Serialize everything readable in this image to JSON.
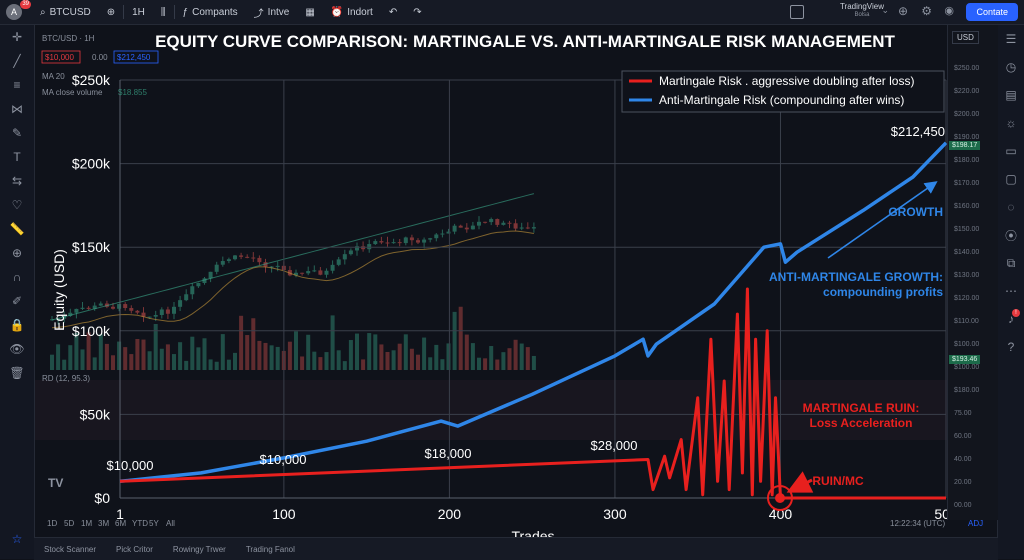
{
  "app": {
    "symbol": "BTCUSD",
    "notification_count": "39",
    "interval": "1H",
    "compare_label": "Compants",
    "indicators_label": "Intve",
    "alert_label": "Indort",
    "brand": "TradingView",
    "brand_sub": "Bolsa",
    "contact_label": "Contate",
    "currency": "USD"
  },
  "background_chart": {
    "symbol_label": "BTC/USD · 1H",
    "price_badge_1": "$10,000",
    "price_badge_2": "0.00",
    "price_badge_3": "$212,450",
    "ma_label": "MA 20",
    "ma_volume_label": "MA close volume",
    "ma_volume_value": "$18.855",
    "rsi_label": "RD (12, 95.3)",
    "scale_labels": [
      "$250.00",
      "$220.00",
      "$200.00",
      "$190.00",
      "$180.00",
      "$170.00",
      "$160.00",
      "$150.00",
      "$140.00",
      "$130.00",
      "$120.00",
      "$110.00",
      "$100.00",
      "$100.00",
      "$180.00",
      "75.00",
      "60.00",
      "40.00",
      "20.00",
      "00.00"
    ],
    "price_tag_1": "$198.17",
    "price_tag_2": "$193.46",
    "time_label": "12:22:34 (UTC)",
    "adj_label": "ADJ",
    "time_buttons": [
      "1D",
      "5D",
      "1M",
      "3M",
      "6M",
      "YTD",
      "5Y",
      "All"
    ],
    "bottom_tabs": [
      "Stock Scanner",
      "Pick Critor",
      "Rowingy Trwer",
      "Trading Fanol"
    ]
  },
  "chart_data": {
    "type": "line",
    "title": "EQUITY CURVE COMPARISON: MARTINGALE VS. ANTI-MARTINGALE RISK MANAGEMENT",
    "xlabel": "Trades",
    "ylabel": "Equity (USD)",
    "xlim": [
      1,
      500
    ],
    "ylim": [
      0,
      250000
    ],
    "x_ticks": [
      1,
      100,
      200,
      300,
      400,
      500
    ],
    "y_ticks": [
      {
        "value": 0,
        "label": "$0"
      },
      {
        "value": 50000,
        "label": "$50k"
      },
      {
        "value": 100000,
        "label": "$100k"
      },
      {
        "value": 150000,
        "label": "$150k"
      },
      {
        "value": 200000,
        "label": "$200k"
      },
      {
        "value": 250000,
        "label": "$250k"
      }
    ],
    "legend_position": "top-right",
    "series": [
      {
        "name": "Martingale Risk . aggressive doubling after loss)",
        "color": "#e8201e",
        "points": [
          [
            1,
            10000
          ],
          [
            320,
            23000
          ],
          [
            323,
            5000
          ],
          [
            330,
            25000
          ],
          [
            333,
            12000
          ],
          [
            340,
            35000
          ],
          [
            343,
            5000
          ],
          [
            350,
            60000
          ],
          [
            353,
            2000
          ],
          [
            358,
            95000
          ],
          [
            362,
            10000
          ],
          [
            366,
            70000
          ],
          [
            369,
            5000
          ],
          [
            374,
            110000
          ],
          [
            377,
            15000
          ],
          [
            380,
            125000
          ],
          [
            383,
            2000
          ],
          [
            385,
            95000
          ],
          [
            388,
            10000
          ],
          [
            392,
            100000
          ],
          [
            395,
            2000
          ],
          [
            397,
            60000
          ],
          [
            400,
            0
          ],
          [
            500,
            0
          ]
        ]
      },
      {
        "name": "Anti-Martingale Risk (compounding after wins)",
        "color": "#2f86e8",
        "points": [
          [
            1,
            10000
          ],
          [
            50,
            15000
          ],
          [
            100,
            24000
          ],
          [
            150,
            34000
          ],
          [
            195,
            46000
          ],
          [
            205,
            43000
          ],
          [
            250,
            62000
          ],
          [
            300,
            85000
          ],
          [
            317,
            95000
          ],
          [
            320,
            85000
          ],
          [
            325,
            92000
          ],
          [
            360,
            116000
          ],
          [
            390,
            150000
          ],
          [
            400,
            152000
          ],
          [
            403,
            141000
          ],
          [
            410,
            147000
          ],
          [
            450,
            172000
          ],
          [
            480,
            192000
          ],
          [
            500,
            212450
          ]
        ]
      }
    ],
    "annotations": {
      "start_value": "$10,000",
      "mid_value_1": "$10,000",
      "mid_value_2": "$18,000",
      "mid_value_3": "$28,000",
      "end_value": "$212,450",
      "growth_label": "GROWTH",
      "anti_title": "ANTI-MARTINGALE GROWTH:",
      "anti_sub": "compounding profits",
      "ruin_title": "MARTINGALE RUIN:",
      "ruin_sub": "Loss Acceleration",
      "ruin_point": "RUIN/MC"
    }
  }
}
